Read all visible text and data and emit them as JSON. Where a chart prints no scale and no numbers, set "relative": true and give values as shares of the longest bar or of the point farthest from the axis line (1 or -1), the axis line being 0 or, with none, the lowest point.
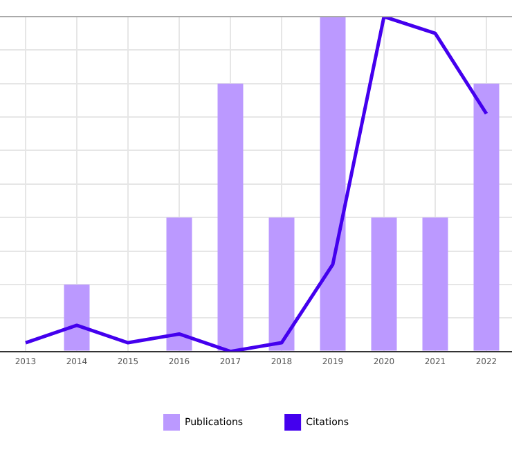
{
  "chart_data": {
    "type": "bar",
    "relative": true,
    "categories": [
      "2013",
      "2014",
      "2015",
      "2016",
      "2017",
      "2018",
      "2019",
      "2020",
      "2021",
      "2022"
    ],
    "series": [
      {
        "name": "Publications",
        "color": "#bb99ff",
        "values": [
          0,
          0.2,
          0,
          0.4,
          0.8,
          0.4,
          1,
          0.4,
          0.4,
          0.8
        ]
      },
      {
        "name": "Citations",
        "type": "line",
        "color": "#4400ee",
        "values": [
          0.026,
          0.078,
          0.026,
          0.052,
          0,
          0.026,
          0.26,
          1,
          0.95,
          0.71
        ]
      }
    ],
    "grid": true,
    "legend": "bottom",
    "marker": "none",
    "line_style": "solid"
  }
}
